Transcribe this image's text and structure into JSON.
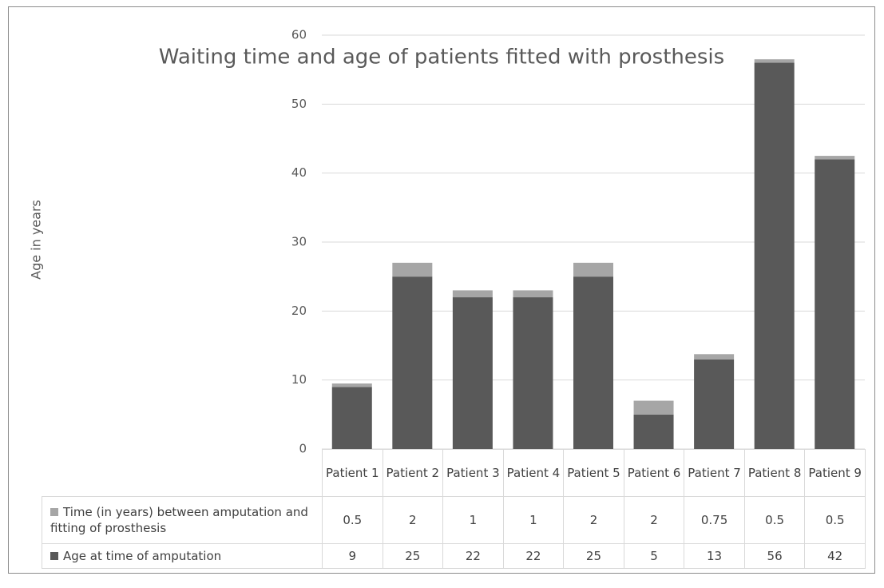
{
  "chart_data": {
    "type": "stacked-bar",
    "title": "Waiting time and age of patients fitted with prosthesis",
    "y_label": "Age in years",
    "categories": [
      "Patient 1",
      "Patient 2",
      "Patient 3",
      "Patient 4",
      "Patient 5",
      "Patient 6",
      "Patient 7",
      "Patient 8",
      "Patient 9"
    ],
    "series": [
      {
        "name": "Age at time of amputation",
        "color": "#595959",
        "values": [
          9,
          25,
          22,
          22,
          25,
          5,
          13,
          56,
          42
        ]
      },
      {
        "name": "Time (in years) between amputation and fitting of prosthesis",
        "color": "#a6a6a6",
        "values": [
          0.5,
          2,
          1,
          1,
          2,
          2,
          0.75,
          0.5,
          0.5
        ]
      }
    ],
    "ylim": [
      0,
      60
    ],
    "yticks": [
      0,
      10,
      20,
      30,
      40,
      50,
      60
    ],
    "grid": true,
    "data_table": true
  }
}
